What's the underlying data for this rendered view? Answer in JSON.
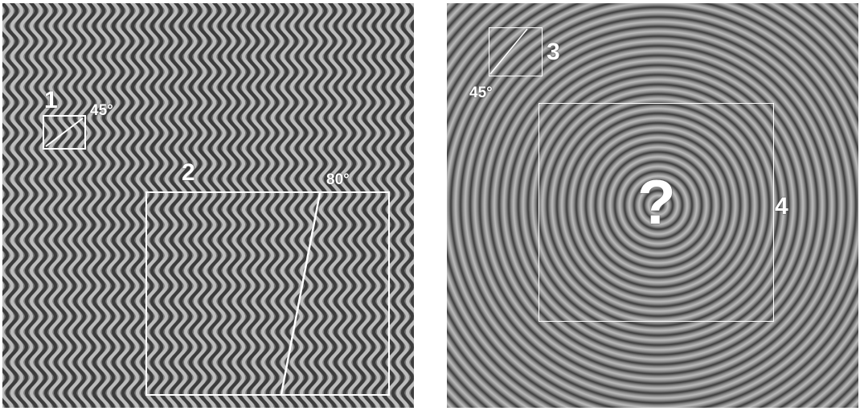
{
  "left_panel": {
    "pattern": "wavy-vertical-stripes",
    "box1": {
      "label": "1",
      "angle": "45°"
    },
    "box2": {
      "label": "2",
      "angle": "80°"
    }
  },
  "right_panel": {
    "pattern": "concentric-rings",
    "box3": {
      "label": "3",
      "angle": "45°"
    },
    "box4": {
      "label": "4",
      "center_symbol": "?"
    }
  },
  "colors": {
    "background": "#ffffff",
    "stripe_dark": "#3c3c3c",
    "stripe_light": "#bdbdbd",
    "outline": "#ffffff"
  }
}
